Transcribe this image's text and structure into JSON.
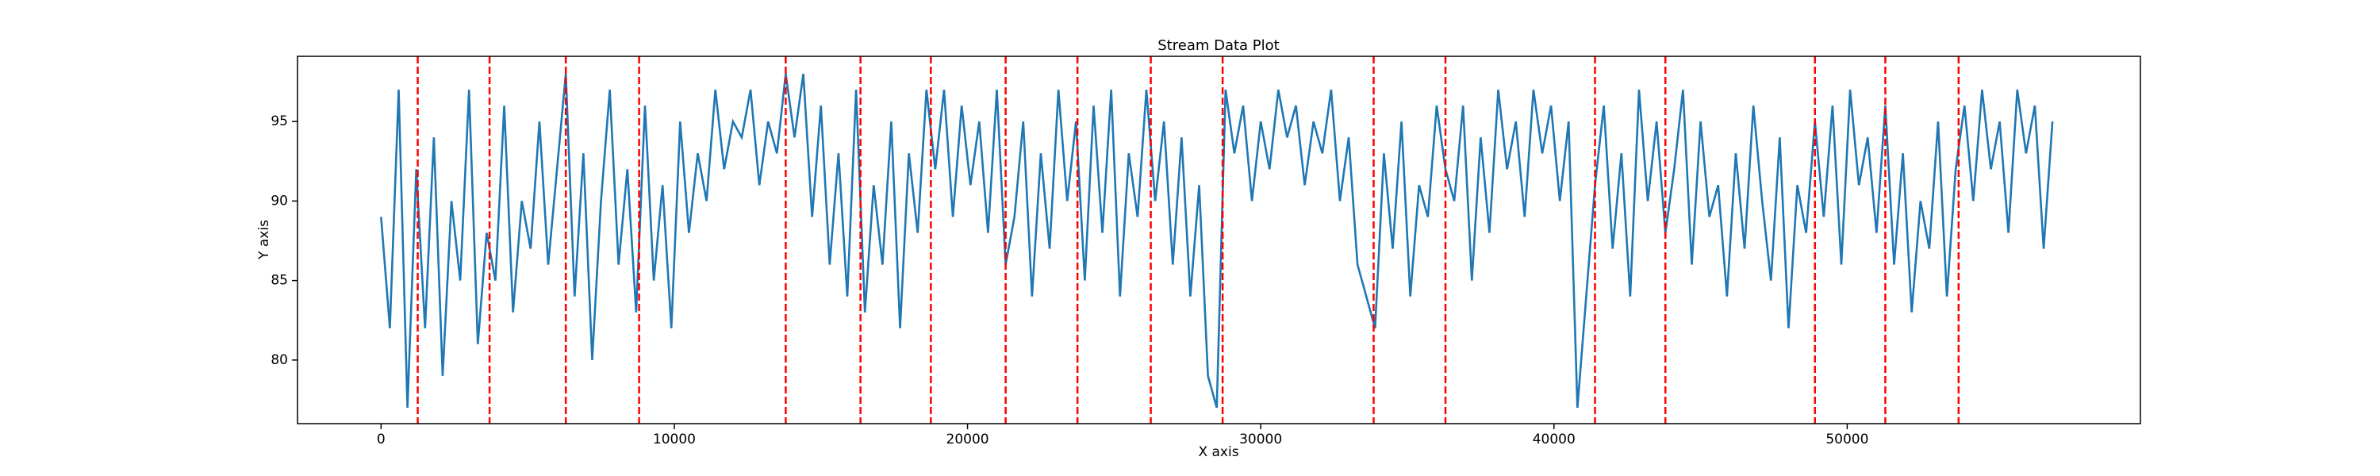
{
  "chart_data": {
    "type": "line",
    "title": "Stream Data Plot",
    "x_label": "X axis",
    "y_label": "Y axis",
    "x": [
      0,
      300,
      600,
      900,
      1200,
      1500,
      1800,
      2100,
      2400,
      2700,
      3000,
      3300,
      3600,
      3900,
      4200,
      4500,
      4800,
      5100,
      5400,
      5700,
      6000,
      6300,
      6600,
      6900,
      7200,
      7500,
      7800,
      8100,
      8400,
      8700,
      9000,
      9300,
      9600,
      9900,
      10200,
      10500,
      10800,
      11100,
      11400,
      11700,
      12000,
      12300,
      12600,
      12900,
      13200,
      13500,
      13800,
      14100,
      14400,
      14700,
      15000,
      15300,
      15600,
      15900,
      16200,
      16500,
      16800,
      17100,
      17400,
      17700,
      18000,
      18300,
      18600,
      18900,
      19200,
      19500,
      19800,
      20100,
      20400,
      20700,
      21000,
      21300,
      21600,
      21900,
      22200,
      22500,
      22800,
      23100,
      23400,
      23700,
      24000,
      24300,
      24600,
      24900,
      25200,
      25500,
      25800,
      26100,
      26400,
      26700,
      27000,
      27300,
      27600,
      27900,
      28200,
      28500,
      28800,
      29100,
      29400,
      29700,
      30000,
      30300,
      30600,
      30900,
      31200,
      31500,
      31800,
      32100,
      32400,
      32700,
      33000,
      33300,
      33600,
      33900,
      34200,
      34500,
      34800,
      35100,
      35400,
      35700,
      36000,
      36300,
      36600,
      36900,
      37200,
      37500,
      37800,
      38100,
      38400,
      38700,
      39000,
      39300,
      39600,
      39900,
      40200,
      40500,
      40800,
      41100,
      41400,
      41700,
      42000,
      42300,
      42600,
      42900,
      43200,
      43500,
      43800,
      44100,
      44400,
      44700,
      45000,
      45300,
      45600,
      45900,
      46200,
      46500,
      46800,
      47100,
      47400,
      47700,
      48000,
      48300,
      48600,
      48900,
      49200,
      49500,
      49800,
      50100,
      50400,
      50700,
      51000,
      51300,
      51600,
      51900,
      52200,
      52500,
      52800,
      53100,
      53400,
      53700,
      54000,
      54300,
      54600,
      54900,
      55200,
      55500,
      55800,
      56100,
      56400,
      56700,
      57000
    ],
    "series": [
      {
        "color": "#1f77b4",
        "values": [
          89,
          82,
          97,
          77,
          92,
          82,
          94,
          79,
          90,
          85,
          97,
          81,
          88,
          85,
          96,
          83,
          90,
          87,
          95,
          86,
          92,
          98,
          84,
          93,
          80,
          90,
          97,
          86,
          92,
          83,
          96,
          85,
          91,
          82,
          95,
          88,
          93,
          90,
          97,
          92,
          95,
          94,
          97,
          91,
          95,
          93,
          98,
          94,
          98,
          89,
          96,
          86,
          93,
          84,
          97,
          83,
          91,
          86,
          95,
          82,
          93,
          88,
          97,
          92,
          97,
          89,
          96,
          91,
          95,
          88,
          97,
          86,
          89,
          95,
          84,
          93,
          87,
          97,
          90,
          95,
          85,
          96,
          88,
          97,
          84,
          93,
          89,
          97,
          90,
          95,
          86,
          94,
          84,
          91,
          79,
          77,
          97,
          93,
          96,
          90,
          95,
          92,
          97,
          94,
          96,
          91,
          95,
          93,
          97,
          90,
          94,
          86,
          84,
          82,
          93,
          87,
          95,
          84,
          91,
          89,
          96,
          92,
          90,
          96,
          85,
          94,
          88,
          97,
          92,
          95,
          89,
          97,
          93,
          96,
          90,
          95,
          77,
          84,
          91,
          96,
          87,
          93,
          84,
          97,
          90,
          95,
          88,
          92,
          97,
          86,
          95,
          89,
          91,
          84,
          93,
          87,
          96,
          90,
          85,
          94,
          82,
          91,
          88,
          95,
          89,
          96,
          86,
          97,
          91,
          94,
          88,
          96,
          86,
          93,
          83,
          90,
          87,
          95,
          84,
          92,
          96,
          90,
          97,
          92,
          95,
          88,
          97,
          93,
          96,
          87,
          95
        ]
      }
    ],
    "vlines": [
      1250,
      3700,
      6300,
      8800,
      13800,
      16350,
      18750,
      21300,
      23750,
      26250,
      28700,
      33850,
      36300,
      41400,
      43800,
      48900,
      51300,
      53800
    ],
    "vline_color": "red",
    "xlim": [
      -2850,
      60000
    ],
    "ylim": [
      76,
      99.1
    ],
    "xticks": [
      0,
      10000,
      20000,
      30000,
      40000,
      50000
    ],
    "yticks": [
      80,
      85,
      90,
      95
    ]
  }
}
